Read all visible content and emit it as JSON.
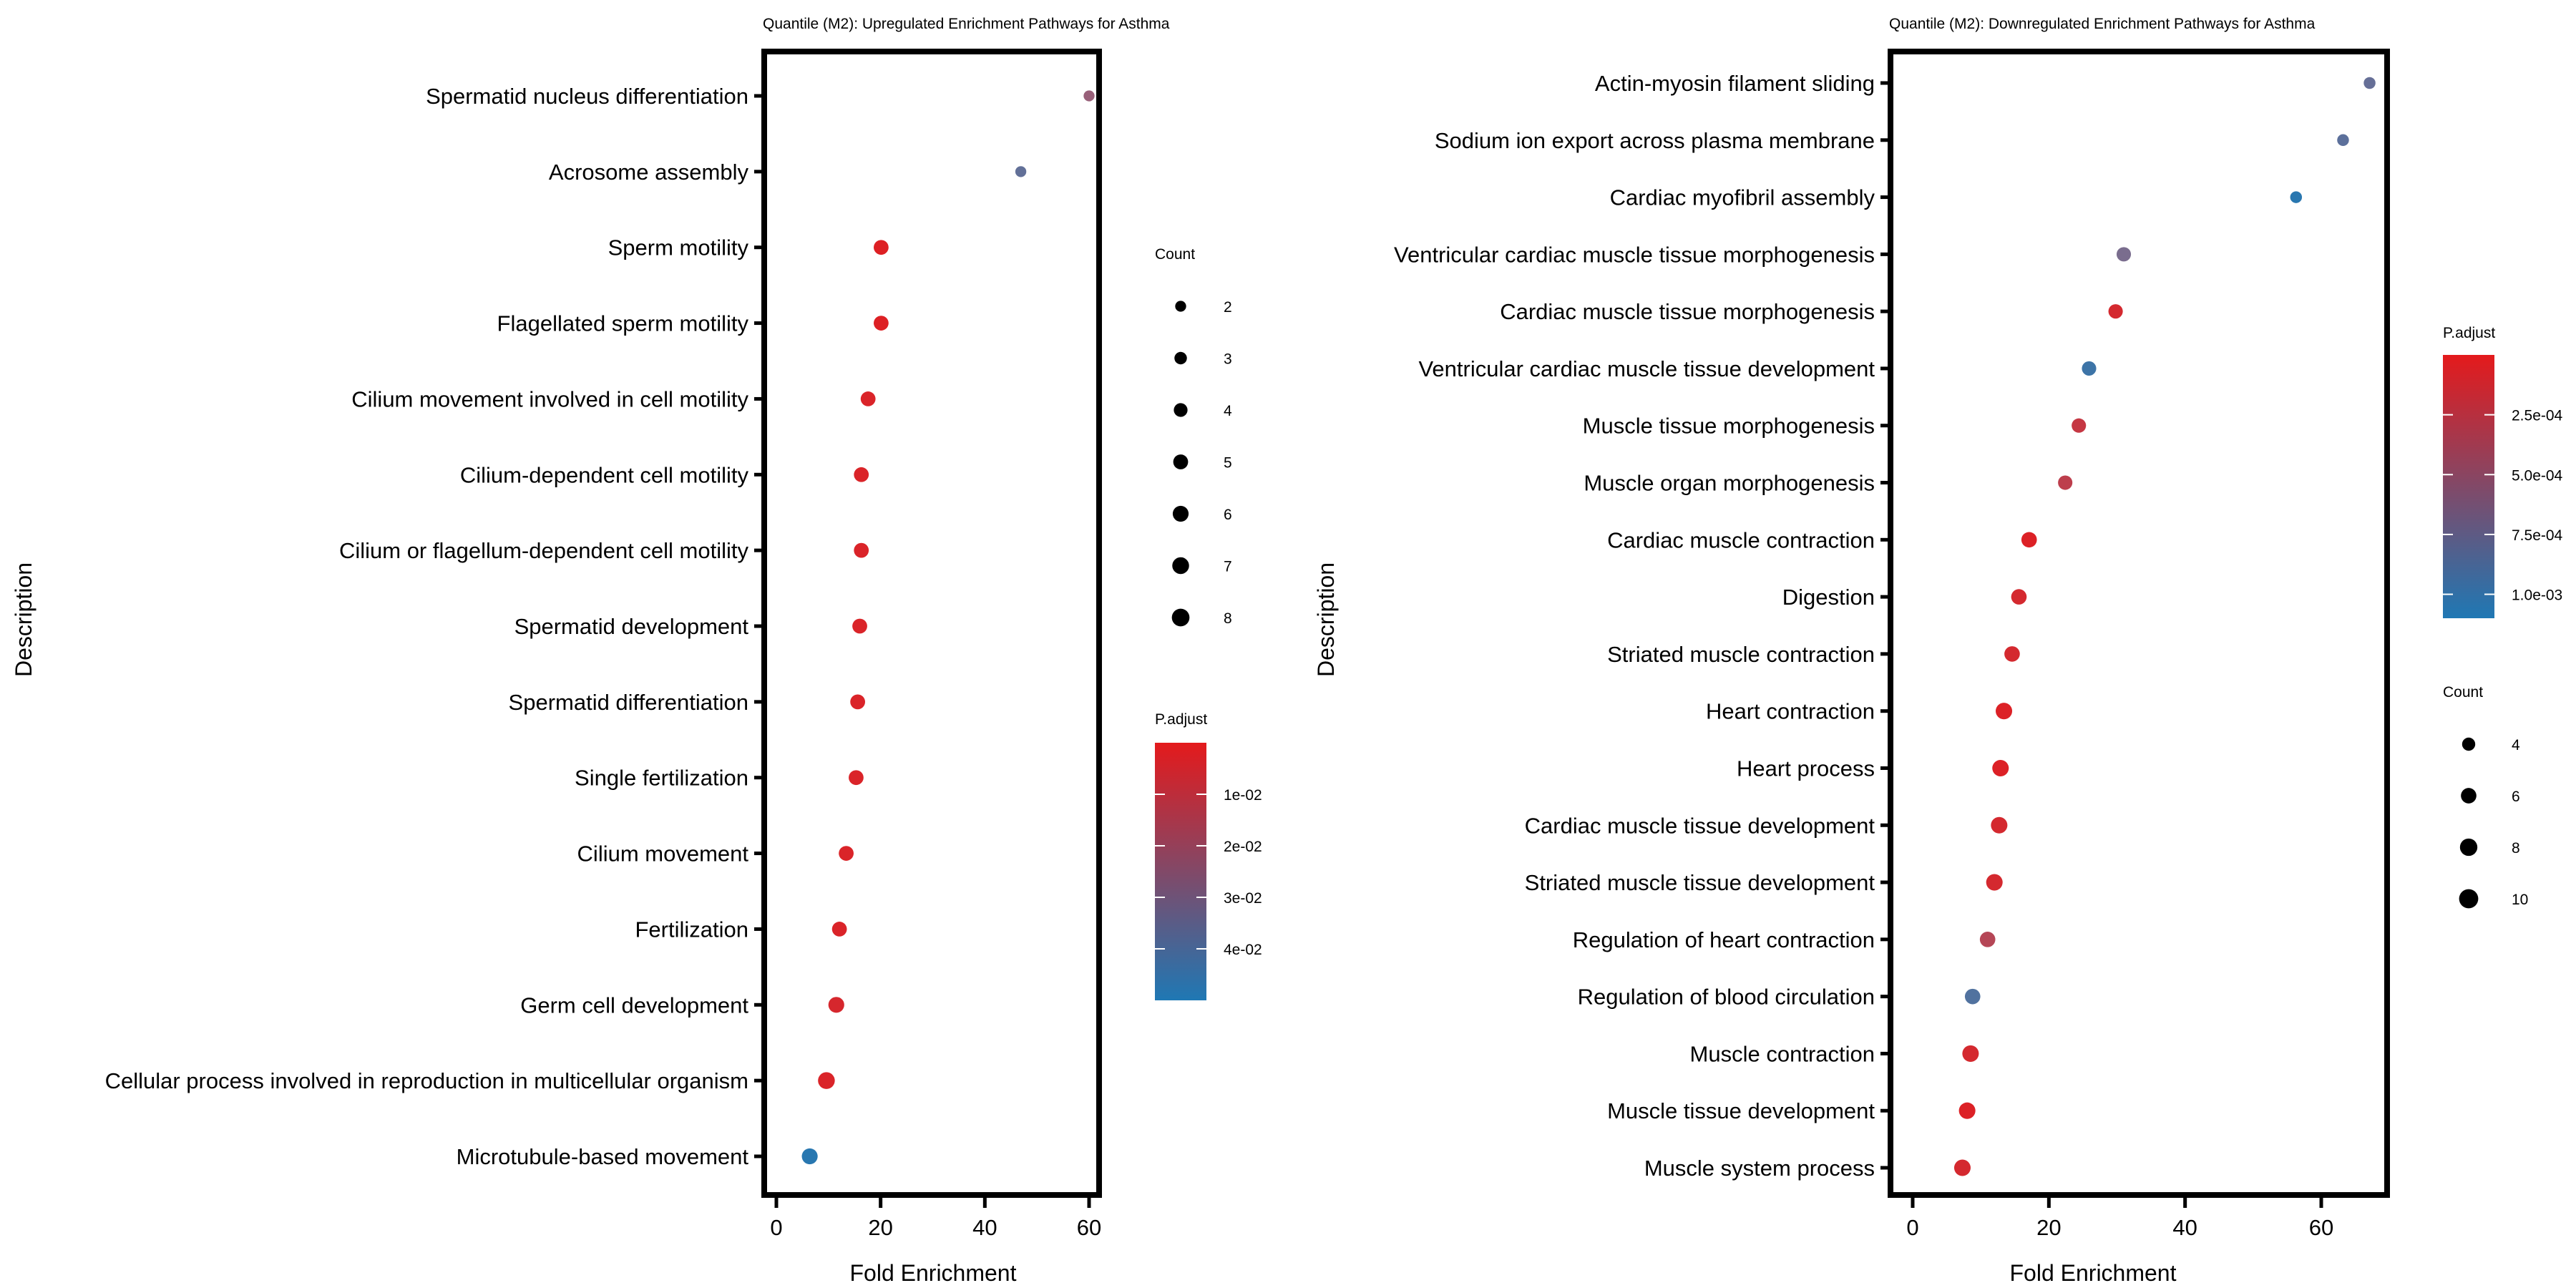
{
  "chart_data": [
    {
      "type": "scatter",
      "subtype": "dotplot",
      "title": "Quantile (M2): Upregulated Enrichment Pathways for Asthma",
      "xlabel": "Fold Enrichment",
      "ylabel": "Description",
      "xlim": [
        -2,
        62
      ],
      "xticks": [
        0,
        20,
        40,
        60
      ],
      "grid": false,
      "categories": [
        "Spermatid nucleus differentiation",
        "Acrosome assembly",
        "Sperm motility",
        "Flagellated sperm motility",
        "Cilium movement involved in cell motility",
        "Cilium-dependent cell motility",
        "Cilium or flagellum-dependent cell motility",
        "Spermatid development",
        "Spermatid differentiation",
        "Single fertilization",
        "Cilium movement",
        "Fertilization",
        "Germ cell development",
        "Cellular process involved in reproduction in multicellular organism",
        "Microtubule-based movement"
      ],
      "fold_enrichment": [
        60.0,
        46.9,
        20.1,
        20.1,
        17.6,
        16.3,
        16.3,
        16.0,
        15.6,
        15.3,
        13.4,
        12.1,
        11.5,
        9.6,
        6.4
      ],
      "count": [
        2,
        2,
        5,
        5,
        5,
        5,
        5,
        5,
        5,
        5,
        5,
        5,
        6,
        7,
        6
      ],
      "p_adjust": [
        0.022,
        0.035,
        0.002,
        0.002,
        0.003,
        0.003,
        0.003,
        0.003,
        0.003,
        0.003,
        0.003,
        0.003,
        0.004,
        0.003,
        0.048
      ],
      "legend_count": {
        "title": "Count",
        "values": [
          2,
          3,
          4,
          5,
          6,
          7,
          8
        ]
      },
      "legend_color": {
        "title": "P.adjust",
        "range": [
          0.0,
          0.05
        ],
        "ticks": [
          0.01,
          0.02,
          0.03,
          0.04
        ],
        "tick_labels": [
          "1e-02",
          "2e-02",
          "3e-02",
          "4e-02"
        ],
        "low_color": "#e41a1c",
        "high_color": "#1f78b4"
      },
      "legend_placement": "right"
    },
    {
      "type": "scatter",
      "subtype": "dotplot",
      "title": "Quantile (M2): Downregulated Enrichment Pathways for Asthma",
      "xlabel": "Fold Enrichment",
      "ylabel": "Description",
      "xlim": [
        -2,
        70
      ],
      "xticks": [
        0,
        20,
        40,
        60
      ],
      "grid": false,
      "categories": [
        "Actin-myosin filament sliding",
        "Sodium ion export across plasma membrane",
        "Cardiac myofibril assembly",
        "Ventricular cardiac muscle tissue morphogenesis",
        "Cardiac muscle tissue morphogenesis",
        "Ventricular cardiac muscle tissue development",
        "Muscle tissue morphogenesis",
        "Muscle organ morphogenesis",
        "Cardiac muscle contraction",
        "Digestion",
        "Striated muscle contraction",
        "Heart contraction",
        "Heart process",
        "Cardiac muscle tissue development",
        "Striated muscle tissue development",
        "Regulation of heart contraction",
        "Regulation of blood circulation",
        "Muscle contraction",
        "Muscle tissue development",
        "Muscle system process"
      ],
      "fold_enrichment": [
        67.1,
        63.2,
        56.3,
        31.0,
        29.8,
        25.9,
        24.4,
        22.4,
        17.1,
        15.6,
        14.6,
        13.4,
        12.9,
        12.7,
        12.0,
        11.0,
        8.8,
        8.5,
        8.0,
        7.3
      ],
      "count": [
        3,
        3,
        3,
        5,
        5,
        5,
        5,
        5,
        6,
        6,
        6,
        7,
        7,
        7,
        7,
        6,
        6,
        7,
        7,
        7
      ],
      "p_adjust": [
        0.00075,
        0.0008,
        0.00105,
        0.00065,
        0.0001,
        0.00095,
        0.0002,
        0.00025,
        5e-05,
        0.0001,
        0.0001,
        5e-05,
        5e-05,
        0.0001,
        0.0001,
        0.0003,
        0.00085,
        0.0001,
        5e-05,
        0.0001
      ],
      "legend_count": {
        "title": "Count",
        "values": [
          4,
          6,
          8,
          10
        ]
      },
      "legend_color": {
        "title": "P.adjust",
        "range": [
          0.0,
          0.0011
        ],
        "ticks": [
          0.00025,
          0.0005,
          0.00075,
          0.001
        ],
        "tick_labels": [
          "2.5e-04",
          "5.0e-04",
          "7.5e-04",
          "1.0e-03"
        ],
        "low_color": "#e41a1c",
        "high_color": "#1f78b4"
      },
      "legend_placement": "right"
    }
  ]
}
